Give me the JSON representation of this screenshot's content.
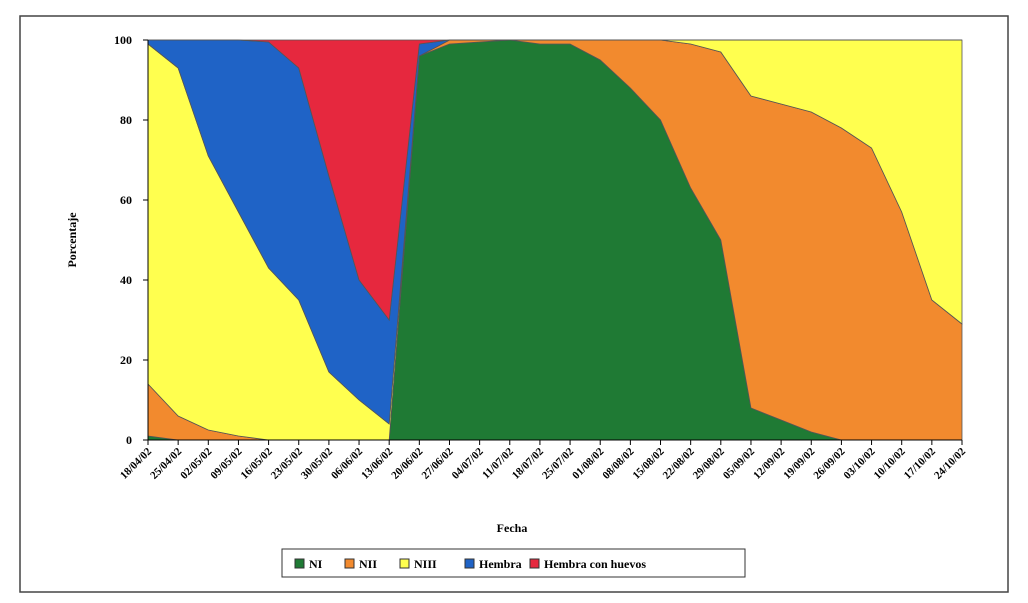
{
  "chart_data": {
    "type": "stacked_area",
    "x_label": "Fecha",
    "y_label": "Porcentaje",
    "categories": [
      "18/04/02",
      "25/04/02",
      "02/05/02",
      "09/05/02",
      "16/05/02",
      "23/05/02",
      "30/05/02",
      "06/06/02",
      "13/06/02",
      "20/06/02",
      "27/06/02",
      "04/07/02",
      "11/07/02",
      "18/07/02",
      "25/07/02",
      "01/08/02",
      "08/08/02",
      "15/08/02",
      "22/08/02",
      "29/08/02",
      "05/09/02",
      "12/09/02",
      "19/09/02",
      "26/09/02",
      "03/10/02",
      "10/10/02",
      "17/10/02",
      "24/10/02"
    ],
    "series": [
      {
        "name": "NI",
        "color": "#1f7a34",
        "values": [
          1,
          0,
          0,
          0,
          0,
          0,
          0,
          0,
          0,
          96,
          99,
          99.5,
          100,
          99,
          99,
          95,
          88,
          80,
          63,
          50,
          8,
          5,
          2,
          0,
          0,
          0,
          0,
          0
        ]
      },
      {
        "name": "NII",
        "color": "#f28a2e",
        "values": [
          13,
          6,
          2.5,
          1,
          0,
          0,
          0,
          0,
          0,
          0,
          1,
          0.5,
          0,
          1,
          1,
          5,
          12,
          20,
          36,
          47,
          78,
          79,
          80,
          78,
          73,
          57,
          35,
          29
        ]
      },
      {
        "name": "NIII",
        "color": "#ffff4f",
        "values": [
          85,
          87,
          68.5,
          56,
          43,
          35,
          17,
          10,
          4,
          0,
          0,
          0,
          0,
          0,
          0,
          0,
          0,
          0,
          1,
          3,
          14,
          16,
          18,
          22,
          27,
          43,
          65,
          71
        ]
      },
      {
        "name": "Hembra",
        "color": "#1f63c6",
        "values": [
          1,
          7,
          29,
          43,
          56.5,
          58,
          49,
          30,
          26,
          3,
          0,
          0,
          0,
          0,
          0,
          0,
          0,
          0,
          0,
          0,
          0,
          0,
          0,
          0,
          0,
          0,
          0,
          0
        ]
      },
      {
        "name": "Hembra con huevos",
        "color": "#e6283e",
        "values": [
          0,
          0,
          0,
          0,
          0.5,
          7,
          34,
          60,
          70,
          1,
          0,
          0,
          0,
          0,
          0,
          0,
          0,
          0,
          0,
          0,
          0,
          0,
          0,
          0,
          0,
          0,
          0,
          0
        ]
      }
    ],
    "ylim": [
      0,
      100
    ],
    "yticks": [
      0,
      20,
      40,
      60,
      80,
      100
    ]
  }
}
